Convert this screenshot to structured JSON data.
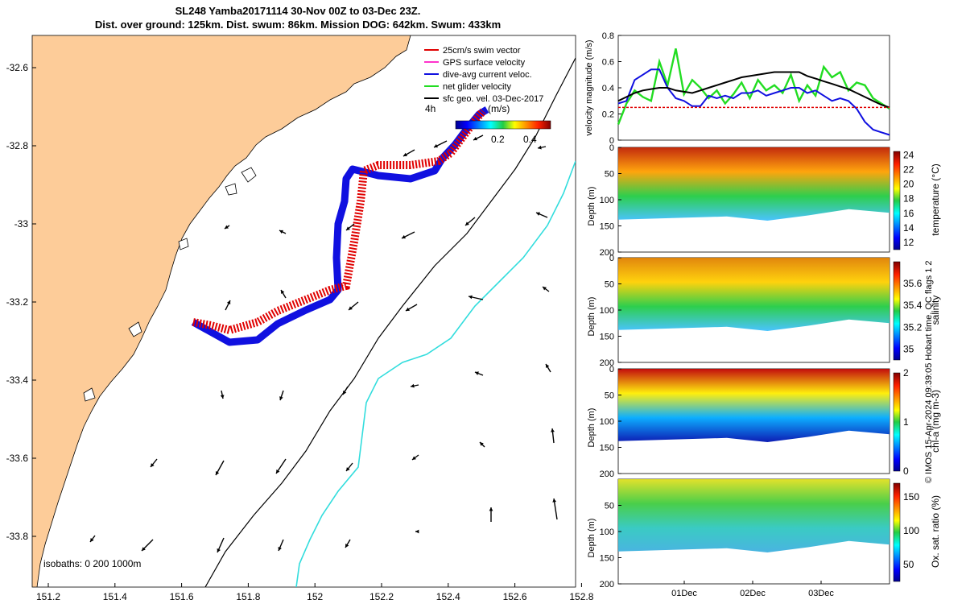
{
  "title_line1": "SL248 Yamba20171114 30-Nov 00Z to 03-Dec 23Z.",
  "title_line2": "Dist. over ground: 125km. Dist. swum: 86km. Mission DOG: 642km. Swum: 433km",
  "credit": "© IMOS 15-Apr-2024 09:39:05 Hobart time. QC flags 1  2",
  "map": {
    "legend": [
      "25cm/s swim vector",
      "GPS surface velocity",
      "dive-avg current veloc.",
      "net glider velocity",
      "sfc geo. vel. 03-Dec-2017"
    ],
    "legend_colors": [
      "#e00000",
      "#ff33cc",
      "#1010e0",
      "#22dd22",
      "#000000"
    ],
    "colorbar_label": "(m/s)",
    "colorbar_prefix": "4h",
    "colorbar_ticks": [
      "0.2",
      "0.4"
    ],
    "isobaths_label": "isobaths: 0   200  1000m",
    "lon_ticks": [
      "151.2",
      "151.4",
      "151.6",
      "151.8",
      "152",
      "152.2",
      "152.4",
      "152.6",
      "152.8"
    ],
    "lat_ticks": [
      "-32.6",
      "-32.8",
      "-33",
      "-33.2",
      "-33.4",
      "-33.6",
      "-33.8"
    ],
    "land_color": "#fdcc99"
  },
  "chart_data": [
    {
      "type": "line",
      "ylabel": "velocity magnitude (m/s)",
      "ylim": [
        0,
        0.8
      ],
      "yticks": [
        "0",
        "0.2",
        "0.4",
        "0.6",
        "0.8"
      ],
      "series": [
        {
          "color": "#22dd22",
          "values": [
            0.12,
            0.28,
            0.38,
            0.33,
            0.3,
            0.6,
            0.42,
            0.7,
            0.35,
            0.46,
            0.4,
            0.32,
            0.38,
            0.28,
            0.35,
            0.44,
            0.32,
            0.46,
            0.38,
            0.42,
            0.36,
            0.5,
            0.3,
            0.42,
            0.34,
            0.56,
            0.48,
            0.52,
            0.38,
            0.44,
            0.42,
            0.32,
            0.28,
            0.24
          ]
        },
        {
          "color": "#1010e0",
          "values": [
            0.28,
            0.3,
            0.46,
            0.5,
            0.54,
            0.54,
            0.4,
            0.32,
            0.3,
            0.26,
            0.26,
            0.34,
            0.32,
            0.34,
            0.32,
            0.36,
            0.36,
            0.38,
            0.34,
            0.36,
            0.38,
            0.4,
            0.4,
            0.36,
            0.38,
            0.34,
            0.3,
            0.32,
            0.3,
            0.24,
            0.14,
            0.08,
            0.06,
            0.04
          ]
        },
        {
          "color": "#000000",
          "values": [
            0.3,
            0.33,
            0.36,
            0.38,
            0.39,
            0.4,
            0.4,
            0.38,
            0.37,
            0.36,
            0.38,
            0.4,
            0.42,
            0.44,
            0.46,
            0.48,
            0.49,
            0.5,
            0.51,
            0.52,
            0.52,
            0.52,
            0.52,
            0.49,
            0.47,
            0.45,
            0.43,
            0.41,
            0.39,
            0.36,
            0.33,
            0.3,
            0.27,
            0.25
          ]
        },
        {
          "color": "#e00000",
          "values": [
            0.25,
            0.25,
            0.25,
            0.25,
            0.25,
            0.25,
            0.25,
            0.25,
            0.25,
            0.25,
            0.25,
            0.25,
            0.25,
            0.25,
            0.25,
            0.25,
            0.25,
            0.25,
            0.25,
            0.25,
            0.25,
            0.25,
            0.25,
            0.25,
            0.25,
            0.25,
            0.25,
            0.25,
            0.25,
            0.25,
            0.25,
            0.25,
            0.25,
            0.25
          ]
        }
      ]
    },
    {
      "type": "heatmap",
      "ylabel": "Depth (m)",
      "clabel": "temperature (°C)",
      "ylim": [
        0,
        200
      ],
      "yticks": [
        "0",
        "50",
        "100",
        "150",
        "200"
      ],
      "cticks": [
        "12",
        "14",
        "16",
        "18",
        "20",
        "22",
        "24"
      ],
      "clim": [
        11,
        24.5
      ]
    },
    {
      "type": "heatmap",
      "ylabel": "Depth (m)",
      "clabel": "salinity",
      "ylim": [
        0,
        200
      ],
      "yticks": [
        "0",
        "50",
        "100",
        "150",
        "200"
      ],
      "cticks": [
        "35",
        "35.2",
        "35.4",
        "35.6"
      ],
      "clim": [
        34.9,
        35.8
      ]
    },
    {
      "type": "heatmap",
      "ylabel": "Depth (m)",
      "clabel": "chl-a (mg m-3)",
      "ylim": [
        0,
        200
      ],
      "yticks": [
        "0",
        "50",
        "100",
        "150",
        "200"
      ],
      "cticks": [
        "0",
        "1",
        "2"
      ],
      "clim": [
        0,
        2
      ]
    },
    {
      "type": "heatmap",
      "ylabel": "Depth (m)",
      "clabel": "Ox. sat. ratio (%)",
      "ylim": [
        0,
        200
      ],
      "yticks": [
        "50",
        "100",
        "150",
        "200"
      ],
      "cticks": [
        "50",
        "100",
        "150"
      ],
      "clim": [
        25,
        170
      ]
    }
  ],
  "time_ticks": [
    "01Dec",
    "02Dec",
    "03Dec"
  ]
}
